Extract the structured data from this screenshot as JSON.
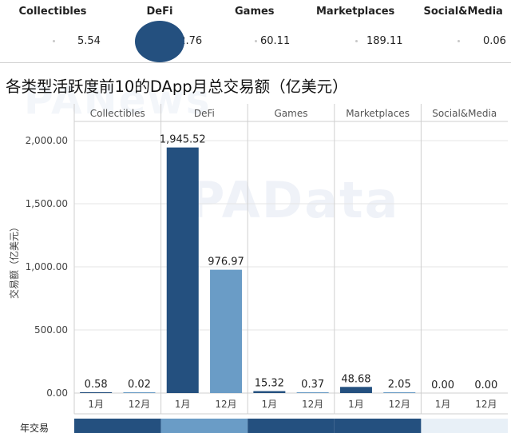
{
  "top_strip": {
    "categories": [
      "Collectibles",
      "DeFi",
      "Games",
      "Marketplaces",
      "Social&Media"
    ],
    "values": [
      "5.54",
      "21,892.76",
      "60.11",
      "189.11",
      "0.06"
    ]
  },
  "chart_title": "各类型活跃度前10的DApp月总交易额（亿美元）",
  "watermarks": [
    "PANews",
    "PAData"
  ],
  "bottom_label": "年交易",
  "colors": {
    "month1": "#24507f",
    "month12": "#6a9cc6",
    "grid": "#e6e6e6",
    "divider": "#cfcfcf",
    "bottom_band_dark": "#24507f",
    "bottom_band_light": "#6a9cc6"
  },
  "chart_data": {
    "type": "bar",
    "title": "各类型活跃度前10的DApp月总交易额（亿美元）",
    "ylabel": "交易额（亿美元）",
    "ylim": [
      0,
      2200
    ],
    "yticks": [
      0,
      500,
      1000,
      1500,
      2000
    ],
    "ytick_labels": [
      "0.00",
      "500.00",
      "1,000.00",
      "1,500.00",
      "2,000.00"
    ],
    "panels": [
      "Collectibles",
      "DeFi",
      "Games",
      "Marketplaces",
      "Social&Media"
    ],
    "months": [
      "1月",
      "12月"
    ],
    "series": [
      {
        "values": [
          0.58,
          1945.52,
          15.32,
          48.68,
          0.0
        ]
      },
      {
        "values": [
          0.02,
          976.97,
          0.37,
          2.05,
          0.0
        ]
      }
    ],
    "data_labels": [
      [
        "0.58",
        "1,945.52",
        "15.32",
        "48.68",
        "0.00"
      ],
      [
        "0.02",
        "976.97",
        "0.37",
        "2.05",
        "0.00"
      ]
    ],
    "grid": true
  }
}
